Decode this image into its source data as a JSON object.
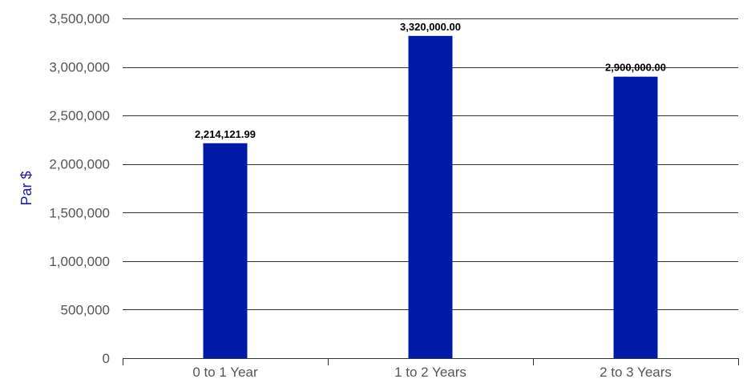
{
  "chart_data": {
    "type": "bar",
    "categories": [
      "0 to 1 Year",
      "1 to 2 Years",
      "2 to 3 Years"
    ],
    "values": [
      2214121.99,
      3320000.0,
      2900000.0
    ],
    "data_labels": [
      "2,214,121.99",
      "3,320,000.00",
      "2,900,000.00"
    ],
    "ylabel": "Par $",
    "xlabel": "",
    "ylim": [
      0,
      3500000
    ],
    "yticks": [
      0,
      500000,
      1000000,
      1500000,
      2000000,
      2500000,
      3000000,
      3500000
    ],
    "ytick_labels": [
      "0",
      "500,000",
      "1,000,000",
      "1,500,000",
      "2,000,000",
      "2,500,000",
      "3,000,000",
      "3,500,000"
    ],
    "grid": true,
    "legend": "none",
    "colors": {
      "bar": "#001aa8",
      "ylabel": "#1a1aa8",
      "gridline": "#333333",
      "tick_label": "#555555"
    }
  }
}
